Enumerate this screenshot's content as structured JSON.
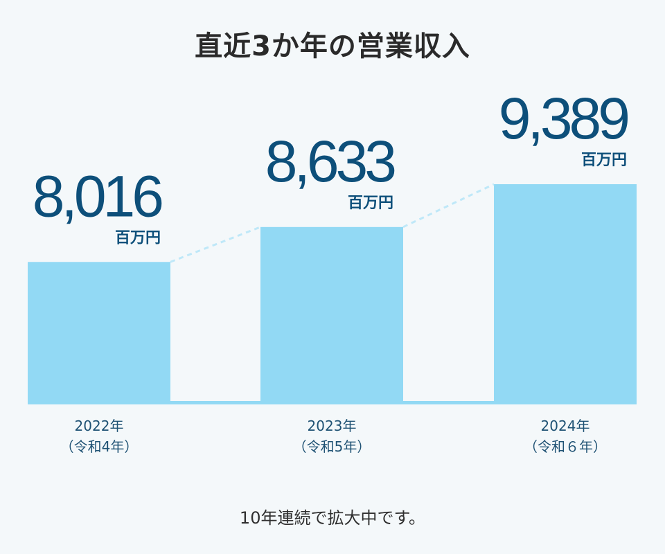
{
  "title": "直近3か年の営業収入",
  "footer": "10年連続で拡大中です。",
  "colors": {
    "bar": "#92d9f4",
    "value": "#0d4f7a",
    "year": "#1f5274",
    "connector": "#bfe8f8"
  },
  "chart_data": {
    "type": "bar",
    "title": "直近3か年の営業収入",
    "categories": [
      "2022年（令和4年）",
      "2023年（令和5年）",
      "2024年（令和6年）"
    ],
    "category_lines": [
      [
        "2022年",
        "（令和4年）"
      ],
      [
        "2023年",
        "（令和5年）"
      ],
      [
        "2024年",
        "（令和６年）"
      ]
    ],
    "values": [
      8016,
      8633,
      9389
    ],
    "value_labels": [
      "8,016",
      "8,633",
      "9,389"
    ],
    "unit": "百万円",
    "xlabel": "",
    "ylabel": "",
    "grid": false,
    "legend": "none"
  }
}
